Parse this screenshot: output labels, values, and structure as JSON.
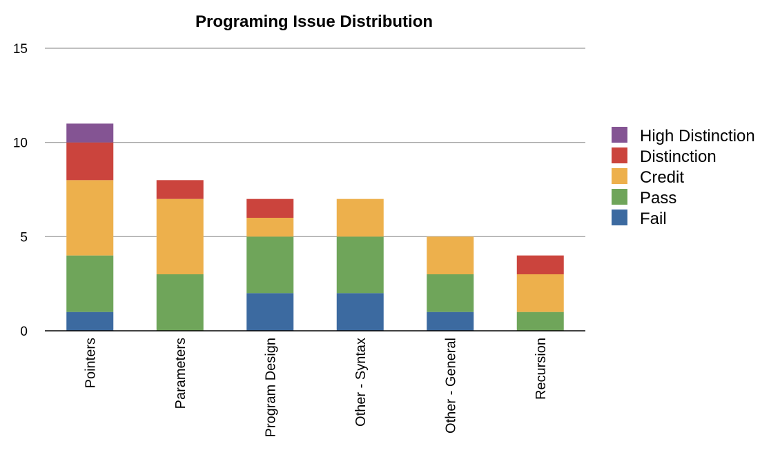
{
  "chart_data": {
    "type": "bar",
    "stacked": true,
    "title": "Programing Issue Distribution",
    "xlabel": "",
    "ylabel": "",
    "ylim": [
      0,
      15
    ],
    "yticks": [
      0,
      5,
      10,
      15
    ],
    "grid": true,
    "legend_position": "right",
    "categories": [
      "Pointers",
      "Parameters",
      "Program Design",
      "Other - Syntax",
      "Other - General",
      "Recursion"
    ],
    "series": [
      {
        "name": "Fail",
        "color": "#3c6aa0",
        "values": [
          1,
          0,
          2,
          2,
          1,
          0
        ]
      },
      {
        "name": "Pass",
        "color": "#6fa55a",
        "values": [
          3,
          3,
          3,
          3,
          2,
          1
        ]
      },
      {
        "name": "Credit",
        "color": "#edb04c",
        "values": [
          4,
          4,
          1,
          2,
          2,
          2
        ]
      },
      {
        "name": "Distinction",
        "color": "#cb443d",
        "values": [
          2,
          1,
          1,
          0,
          0,
          1
        ]
      },
      {
        "name": "High Distinction",
        "color": "#845493",
        "values": [
          1,
          0,
          0,
          0,
          0,
          0
        ]
      }
    ]
  }
}
